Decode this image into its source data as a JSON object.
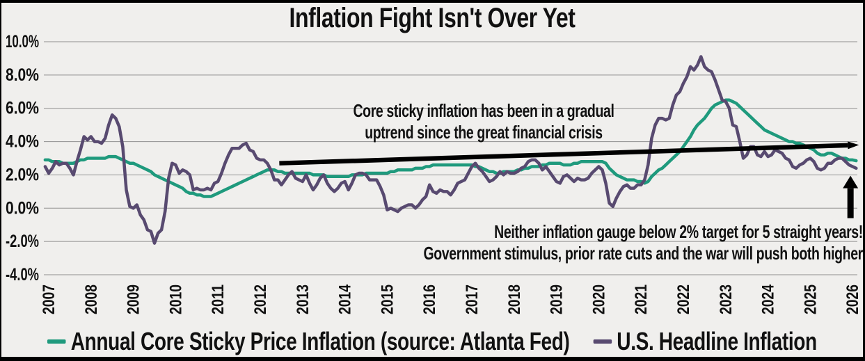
{
  "title": "Inflation Fight Isn't Over Yet",
  "annotations": {
    "uptrend": {
      "line1": "Core sticky inflation has been in a gradual",
      "line2": "uptrend since the great financial crisis"
    },
    "warning": {
      "line1": "Neither inflation gauge below 2% target for 5 straight years!",
      "line2": "Government stimulus, prior rate cuts and the war will push both higher"
    }
  },
  "colors": {
    "background": "#f0efed",
    "frame": "#000000",
    "grid": "#8f8f8f",
    "text": "#111111",
    "arrow": "#000000",
    "sticky": "#1f9a7d",
    "headline": "#584a70"
  },
  "chart_data": {
    "type": "line",
    "title": "Inflation Fight Isn't Over Yet",
    "xlabel": "",
    "ylabel": "",
    "ylim": [
      -4,
      10
    ],
    "grid": true,
    "legend_position": "bottom",
    "yticks": {
      "values": [
        10,
        8,
        6,
        4,
        2,
        0,
        -2,
        -4
      ],
      "labels": [
        "10.0%",
        "8.0%",
        "6.0%",
        "4.0%",
        "2.0%",
        "0.0%",
        "-2.0%",
        "-4.0%"
      ]
    },
    "xticks": [
      2007,
      2008,
      2009,
      2010,
      2011,
      2012,
      2013,
      2014,
      2015,
      2016,
      2017,
      2018,
      2019,
      2020,
      2021,
      2022,
      2023,
      2024,
      2025,
      2026
    ],
    "series": [
      {
        "name": "Annual Core Sticky Price Inflation (source: Atlanta Fed)",
        "color": "#1f9a7d",
        "start_year": 2006.9167,
        "step_months": 1,
        "values": [
          2.9,
          2.9,
          2.8,
          2.8,
          2.8,
          2.7,
          2.7,
          2.7,
          2.7,
          2.8,
          2.9,
          2.9,
          3.0,
          3.0,
          3.0,
          3.0,
          3.0,
          3.0,
          3.1,
          3.1,
          3.1,
          3.0,
          2.9,
          2.8,
          2.7,
          2.7,
          2.6,
          2.5,
          2.4,
          2.3,
          2.2,
          2.0,
          1.9,
          1.8,
          1.7,
          1.6,
          1.5,
          1.4,
          1.3,
          1.2,
          1.0,
          0.9,
          0.9,
          0.8,
          0.8,
          0.7,
          0.7,
          0.7,
          0.8,
          0.9,
          1.0,
          1.1,
          1.2,
          1.3,
          1.4,
          1.5,
          1.6,
          1.7,
          1.8,
          1.9,
          2.0,
          2.1,
          2.2,
          2.3,
          2.3,
          2.3,
          2.2,
          2.2,
          2.1,
          2.1,
          2.1,
          2.1,
          2.1,
          2.1,
          2.1,
          2.1,
          2.0,
          2.0,
          2.0,
          2.0,
          1.9,
          1.9,
          1.9,
          1.9,
          1.9,
          1.9,
          1.9,
          2.0,
          2.0,
          2.0,
          2.0,
          2.1,
          2.1,
          2.1,
          2.1,
          2.1,
          2.1,
          2.1,
          2.2,
          2.2,
          2.3,
          2.3,
          2.3,
          2.3,
          2.3,
          2.4,
          2.4,
          2.4,
          2.5,
          2.5,
          2.6,
          2.6,
          2.6,
          2.6,
          2.6,
          2.6,
          2.6,
          2.6,
          2.6,
          2.6,
          2.6,
          2.6,
          2.5,
          2.5,
          2.4,
          2.3,
          2.2,
          2.2,
          2.1,
          2.1,
          2.2,
          2.2,
          2.2,
          2.2,
          2.3,
          2.3,
          2.4,
          2.4,
          2.5,
          2.5,
          2.5,
          2.6,
          2.6,
          2.7,
          2.7,
          2.7,
          2.7,
          2.6,
          2.6,
          2.6,
          2.7,
          2.7,
          2.8,
          2.8,
          2.8,
          2.8,
          2.8,
          2.8,
          2.8,
          2.7,
          2.4,
          2.2,
          2.0,
          1.9,
          1.8,
          1.7,
          1.7,
          1.7,
          1.6,
          1.6,
          1.5,
          1.6,
          1.9,
          2.1,
          2.3,
          2.4,
          2.6,
          2.8,
          3.0,
          3.2,
          3.4,
          3.7,
          4.0,
          4.3,
          4.7,
          5.0,
          5.2,
          5.4,
          5.7,
          6.0,
          6.2,
          6.3,
          6.4,
          6.5,
          6.5,
          6.4,
          6.3,
          6.1,
          5.9,
          5.7,
          5.5,
          5.3,
          5.1,
          4.9,
          4.7,
          4.6,
          4.5,
          4.4,
          4.3,
          4.2,
          4.1,
          4.0,
          4.0,
          3.9,
          3.9,
          3.8,
          3.7,
          3.6,
          3.5,
          3.3,
          3.2,
          3.2,
          3.3,
          3.3,
          3.2,
          3.1,
          3.0,
          3.0,
          2.9,
          2.9,
          2.85
        ]
      },
      {
        "name": "U.S. Headline Inflation",
        "color": "#584a70",
        "start_year": 2006.9167,
        "step_months": 1,
        "values": [
          2.5,
          2.1,
          2.4,
          2.8,
          2.6,
          2.7,
          2.7,
          2.4,
          2.0,
          2.8,
          3.5,
          4.3,
          4.1,
          4.3,
          4.0,
          4.0,
          3.9,
          4.2,
          5.0,
          5.6,
          5.4,
          4.9,
          3.7,
          1.1,
          0.1,
          0.0,
          0.2,
          -0.4,
          -0.7,
          -1.3,
          -1.4,
          -2.1,
          -1.5,
          -1.3,
          -0.2,
          1.8,
          2.7,
          2.6,
          2.1,
          2.3,
          2.2,
          2.0,
          1.1,
          1.2,
          1.1,
          1.1,
          1.2,
          1.1,
          1.5,
          1.6,
          2.1,
          2.7,
          3.2,
          3.6,
          3.6,
          3.6,
          3.8,
          3.9,
          3.5,
          3.4,
          3.0,
          2.9,
          2.9,
          2.7,
          2.3,
          1.7,
          1.7,
          1.4,
          1.7,
          2.0,
          2.2,
          1.8,
          1.7,
          1.6,
          2.0,
          1.5,
          1.1,
          1.4,
          1.8,
          2.0,
          1.5,
          1.2,
          1.0,
          1.2,
          1.5,
          1.6,
          1.1,
          1.5,
          2.0,
          2.1,
          2.1,
          2.0,
          1.7,
          1.7,
          1.7,
          1.3,
          0.8,
          -0.1,
          0.0,
          -0.1,
          -0.2,
          0.0,
          0.1,
          0.2,
          0.2,
          0.0,
          0.2,
          0.5,
          0.7,
          1.4,
          1.0,
          0.9,
          1.1,
          1.0,
          1.0,
          0.8,
          1.1,
          1.5,
          1.6,
          1.7,
          2.1,
          2.5,
          2.7,
          2.4,
          2.2,
          1.9,
          1.6,
          1.7,
          1.9,
          2.2,
          2.0,
          2.2,
          2.1,
          2.1,
          2.2,
          2.4,
          2.5,
          2.8,
          2.9,
          2.9,
          2.7,
          2.3,
          2.5,
          2.2,
          1.9,
          1.6,
          1.5,
          1.9,
          2.0,
          1.8,
          1.6,
          1.8,
          1.7,
          1.7,
          1.8,
          2.1,
          2.3,
          2.5,
          2.3,
          1.5,
          0.3,
          0.1,
          0.6,
          1.0,
          1.3,
          1.4,
          1.2,
          1.2,
          1.4,
          1.4,
          1.7,
          2.6,
          4.2,
          5.0,
          5.4,
          5.4,
          5.3,
          5.4,
          6.2,
          6.8,
          7.0,
          7.5,
          7.9,
          8.5,
          8.3,
          8.6,
          9.1,
          8.5,
          8.3,
          8.2,
          7.7,
          7.1,
          6.5,
          6.4,
          6.0,
          5.0,
          4.9,
          4.0,
          3.0,
          3.2,
          3.7,
          3.7,
          3.2,
          3.1,
          3.4,
          3.1,
          3.2,
          3.5,
          3.4,
          3.3,
          3.0,
          2.9,
          2.5,
          2.4,
          2.6,
          2.7,
          2.9,
          3.0,
          2.8,
          2.4,
          2.3,
          2.4,
          2.7,
          2.7,
          2.9,
          3.0,
          3.0,
          2.8,
          2.6,
          2.5,
          2.4
        ]
      }
    ],
    "arrows": {
      "trend_arrow": {
        "from_year": 2012.45,
        "from_value": 2.7,
        "to_year": 2026.15,
        "to_value": 3.8
      },
      "up_arrow": {
        "year": 2025.95,
        "from_value": -0.6,
        "to_value": 1.95
      }
    }
  }
}
